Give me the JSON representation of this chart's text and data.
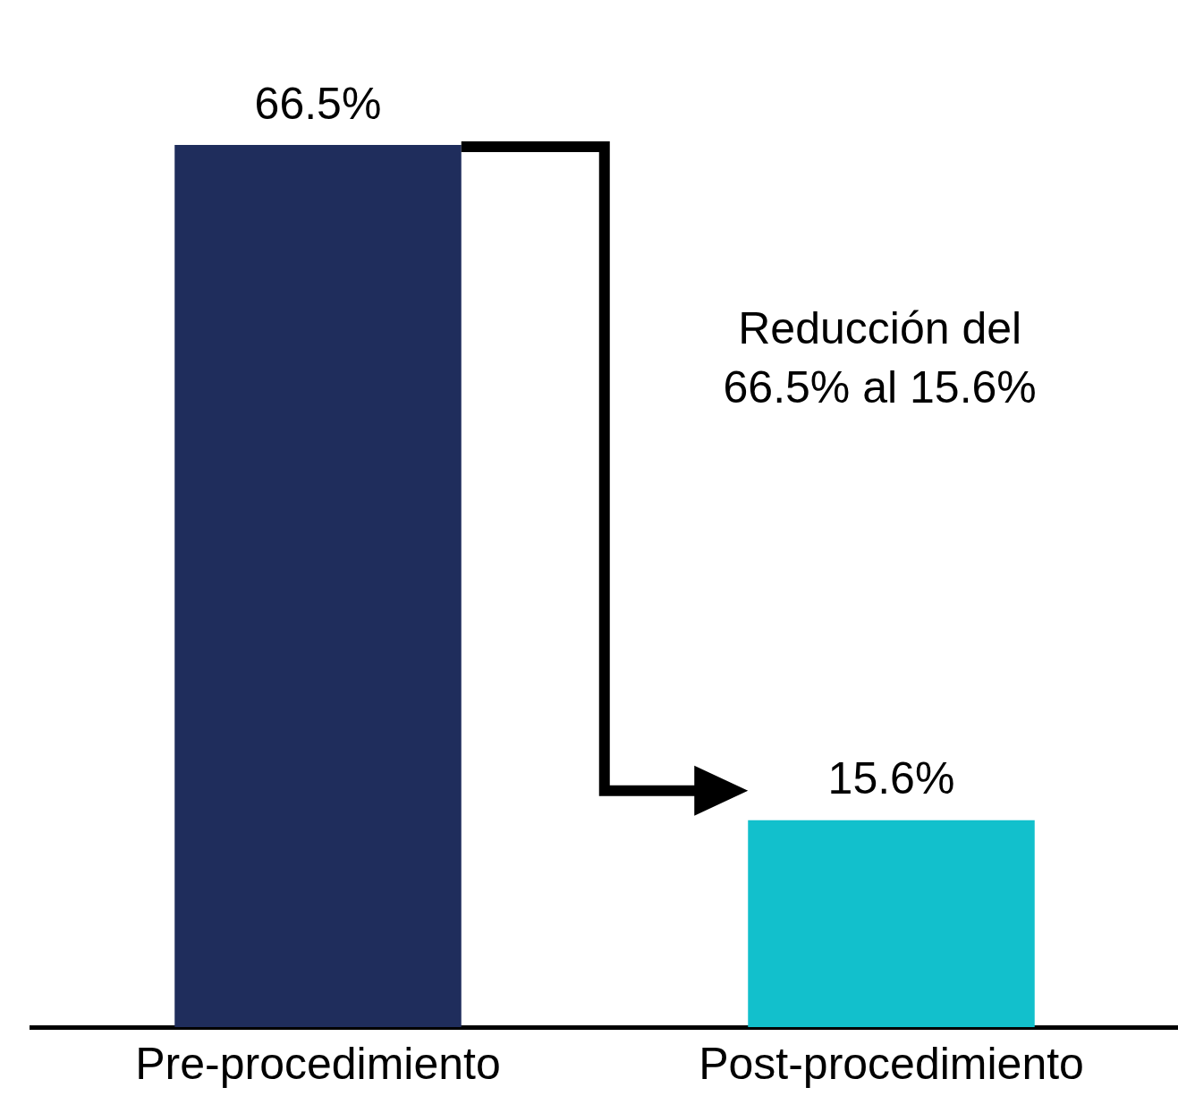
{
  "chart_data": {
    "type": "bar",
    "categories": [
      "Pre-procedimiento",
      "Post-procedimiento"
    ],
    "values": [
      66.5,
      15.6
    ],
    "colors": [
      "#1f2d5c",
      "#12c0cc"
    ],
    "value_labels": [
      "66.5%",
      "15.6%"
    ],
    "annotations": [
      "Reducción del\n66.5% al 15.6%"
    ],
    "grid": false,
    "legend": false
  }
}
